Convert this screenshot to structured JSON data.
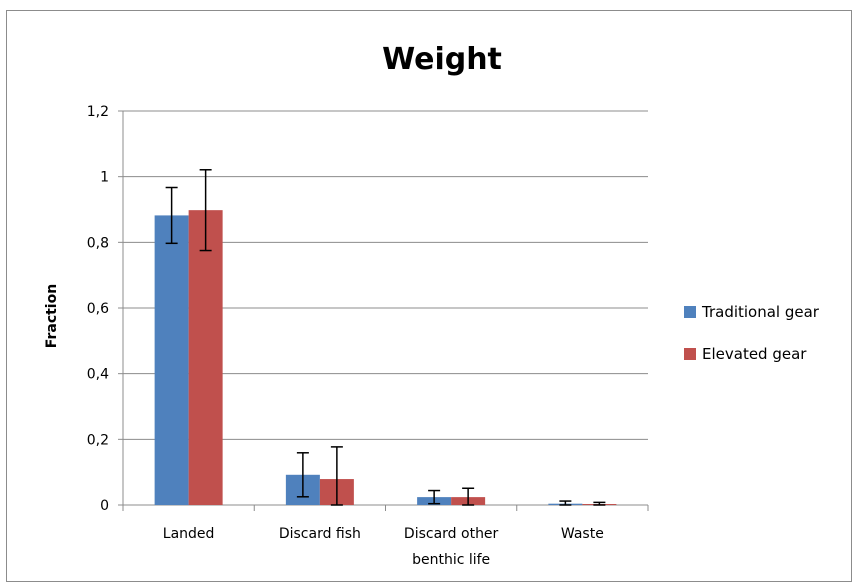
{
  "chart_data": {
    "type": "bar",
    "title": "Weight",
    "xlabel": "",
    "ylabel": "Fraction",
    "ylim": [
      0,
      1.2
    ],
    "yticks": [
      "0",
      "0,2",
      "0,4",
      "0,6",
      "0,8",
      "1",
      "1,2"
    ],
    "categories": [
      [
        "Landed"
      ],
      [
        "Discard fish"
      ],
      [
        "Discard other",
        "benthic life"
      ],
      [
        "Waste"
      ]
    ],
    "series": [
      {
        "name": "Traditional gear",
        "color": "#4F81BD",
        "values": [
          0.882,
          0.092,
          0.024,
          0.004
        ],
        "error": [
          0.085,
          0.067,
          0.02,
          0.008
        ]
      },
      {
        "name": "Elevated gear",
        "color": "#C0504D",
        "values": [
          0.898,
          0.079,
          0.024,
          0.003
        ],
        "error": [
          0.123,
          0.098,
          0.027,
          0.005
        ]
      }
    ],
    "grid": true,
    "legend": "right"
  }
}
